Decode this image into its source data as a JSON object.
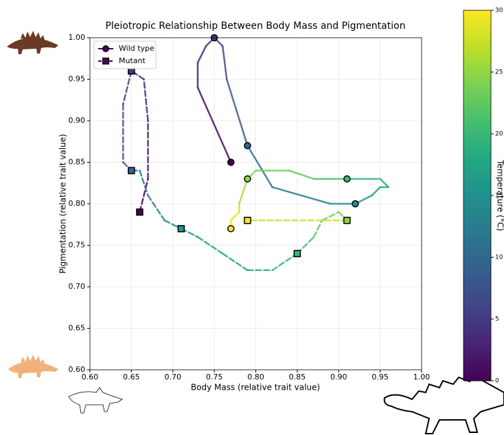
{
  "chart_data": {
    "type": "line",
    "title": "Pleiotropic Relationship Between Body Mass and Pigmentation",
    "x_label": "Body Mass (relative trait value)",
    "y_label": "Pigmentation (relative trait value)",
    "colorbar_label": "Temperature (°C)",
    "colormap": "viridis",
    "clim": [
      0,
      30
    ],
    "cticks": [
      0,
      5,
      10,
      15,
      20,
      25,
      30
    ],
    "xlim": [
      0.6,
      1.0
    ],
    "ylim": [
      0.6,
      1.0
    ],
    "xticks": [
      {
        "value": 0.6,
        "label": "0.60"
      },
      {
        "value": 0.65,
        "label": "0.65"
      },
      {
        "value": 0.7,
        "label": "0.70"
      },
      {
        "value": 0.75,
        "label": "0.75"
      },
      {
        "value": 0.8,
        "label": "0.80"
      },
      {
        "value": 0.85,
        "label": "0.85"
      },
      {
        "value": 0.9,
        "label": "0.90"
      },
      {
        "value": 0.95,
        "label": "0.95"
      },
      {
        "value": 1.0,
        "label": "1.00"
      }
    ],
    "yticks": [
      {
        "value": 0.6,
        "label": "0.60"
      },
      {
        "value": 0.65,
        "label": "0.65"
      },
      {
        "value": 0.7,
        "label": "0.70"
      },
      {
        "value": 0.75,
        "label": "0.75"
      },
      {
        "value": 0.8,
        "label": "0.80"
      },
      {
        "value": 0.85,
        "label": "0.85"
      },
      {
        "value": 0.9,
        "label": "0.90"
      },
      {
        "value": 0.95,
        "label": "0.95"
      },
      {
        "value": 1.0,
        "label": "1.00"
      }
    ],
    "grid": true,
    "legend": "upper left",
    "marker_step": 5,
    "series": [
      {
        "name": "Wild type",
        "marker": "circle",
        "linestyle": "solid",
        "temperature": [
          0,
          2,
          3,
          4,
          5,
          6,
          7,
          10,
          12,
          14,
          15,
          16,
          17,
          18,
          19,
          20,
          22,
          23,
          24,
          25,
          27,
          28,
          29,
          30
        ],
        "x": [
          0.77,
          0.73,
          0.73,
          0.74,
          0.75,
          0.76,
          0.765,
          0.79,
          0.82,
          0.89,
          0.92,
          0.94,
          0.95,
          0.96,
          0.95,
          0.91,
          0.87,
          0.84,
          0.8,
          0.79,
          0.78,
          0.78,
          0.77,
          0.77
        ],
        "y": [
          0.85,
          0.94,
          0.97,
          0.99,
          1.0,
          0.99,
          0.95,
          0.87,
          0.82,
          0.8,
          0.8,
          0.81,
          0.82,
          0.82,
          0.83,
          0.83,
          0.83,
          0.84,
          0.84,
          0.83,
          0.8,
          0.79,
          0.78,
          0.77
        ]
      },
      {
        "name": "Mutant",
        "marker": "square",
        "linestyle": "dashed",
        "temperature": [
          0,
          1,
          3,
          4,
          5,
          7,
          8,
          10,
          11,
          12,
          13,
          15,
          16,
          17,
          18,
          19,
          20,
          22,
          23,
          24,
          25,
          30
        ],
        "x": [
          0.66,
          0.67,
          0.67,
          0.665,
          0.65,
          0.64,
          0.64,
          0.65,
          0.66,
          0.67,
          0.69,
          0.71,
          0.73,
          0.76,
          0.79,
          0.82,
          0.85,
          0.87,
          0.88,
          0.9,
          0.91,
          0.79
        ],
        "y": [
          0.79,
          0.83,
          0.9,
          0.95,
          0.96,
          0.92,
          0.85,
          0.84,
          0.84,
          0.81,
          0.78,
          0.77,
          0.76,
          0.74,
          0.72,
          0.72,
          0.74,
          0.76,
          0.78,
          0.79,
          0.78,
          0.78
        ]
      }
    ]
  }
}
